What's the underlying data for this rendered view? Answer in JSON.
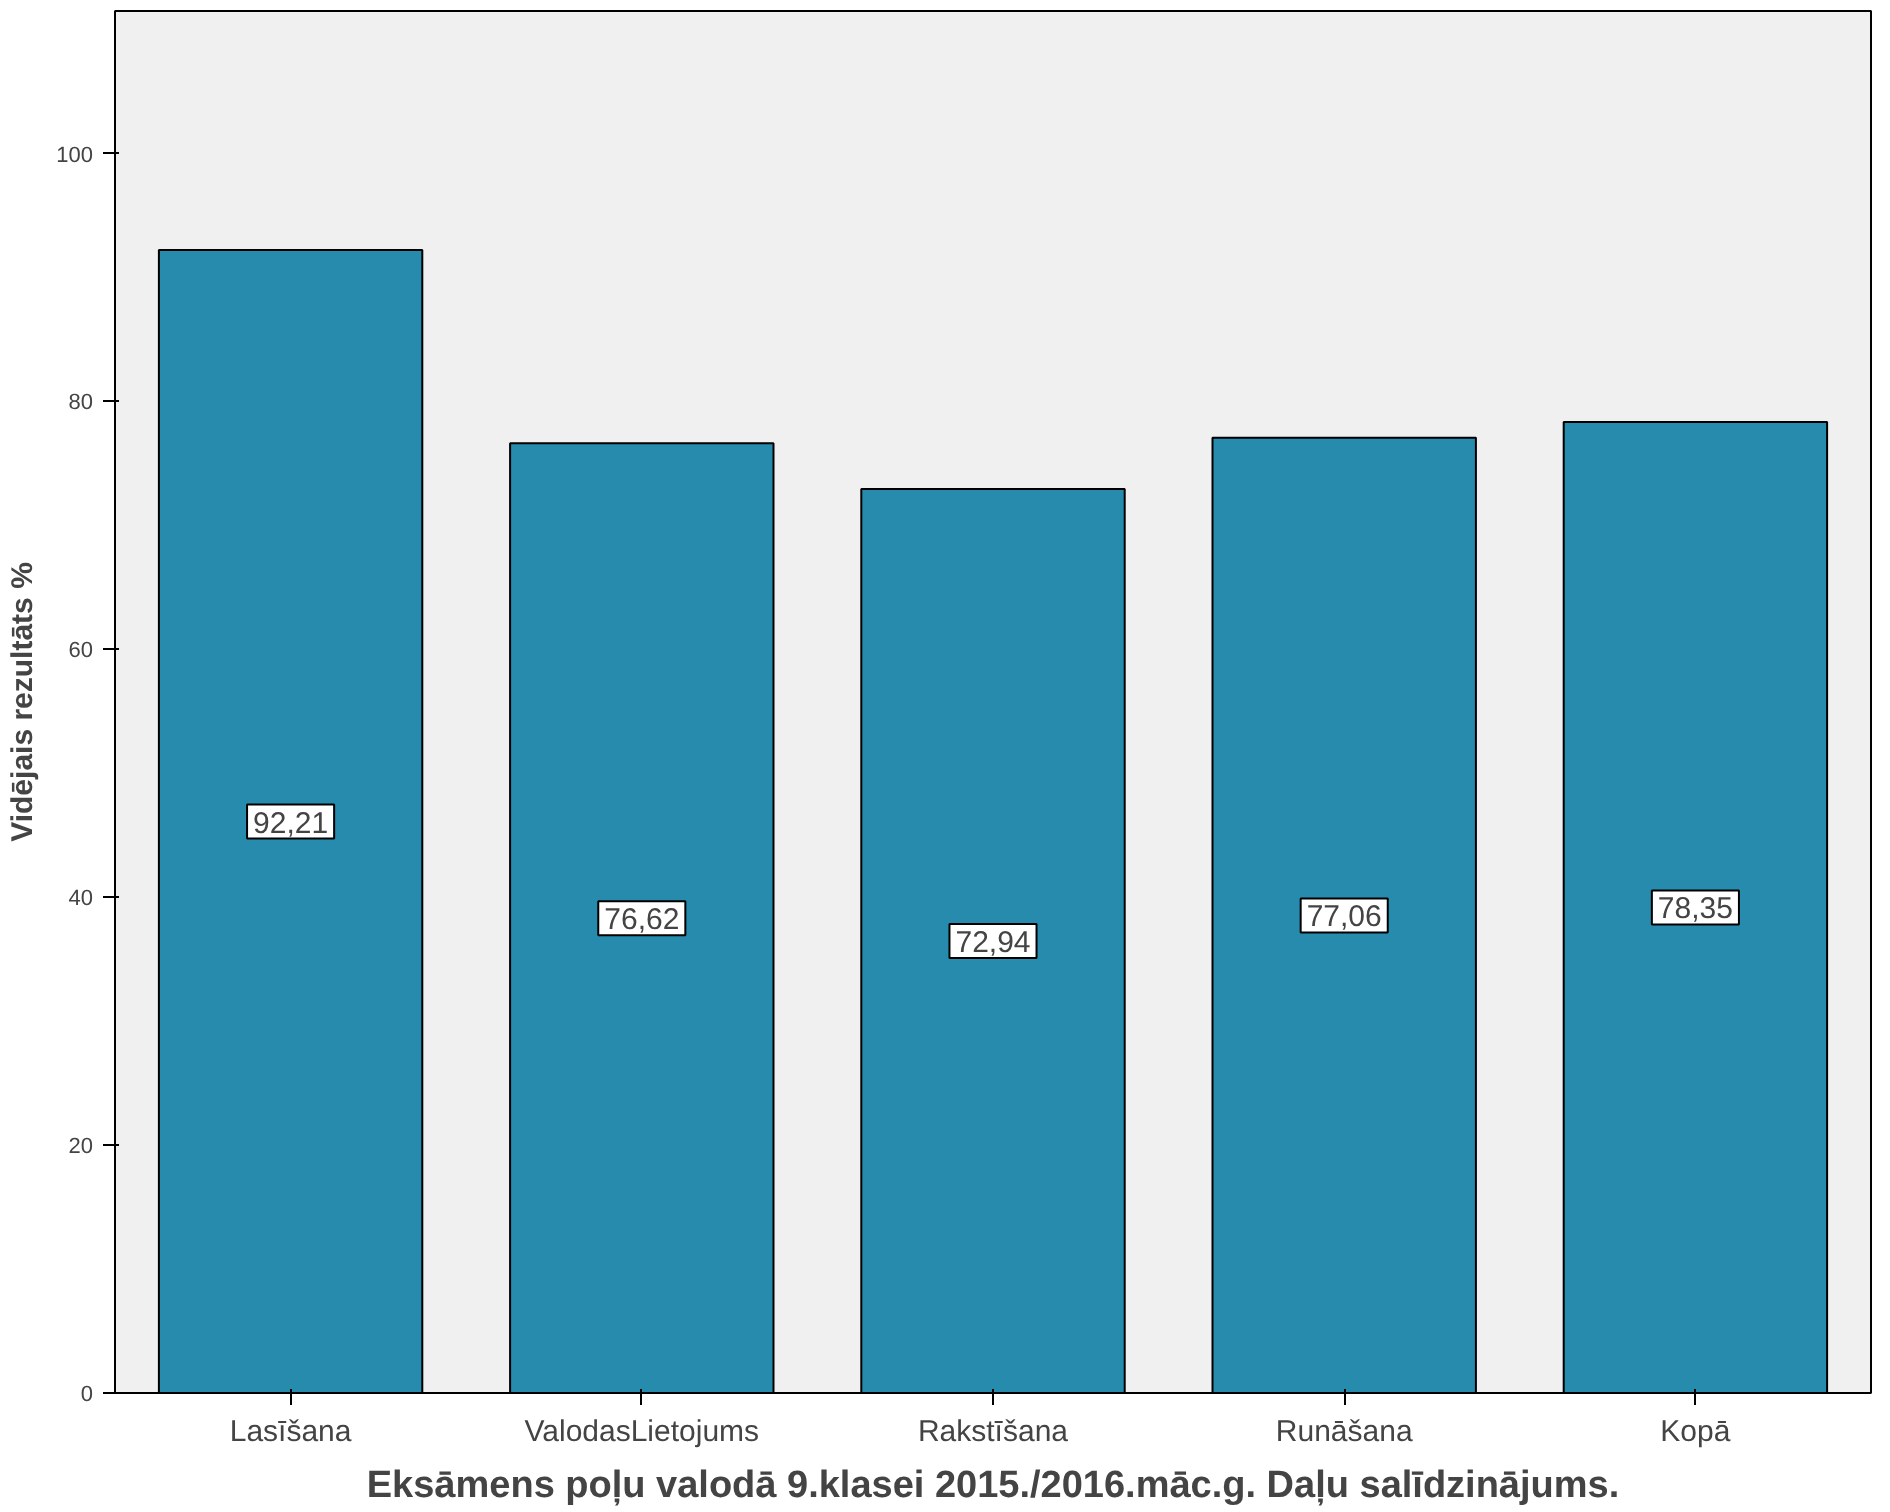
{
  "chart_data": {
    "type": "bar",
    "xlabel": "Eksāmens poļu valodā 9.klasei 2015./2016.māc.g. Daļu salīdzinājums.",
    "ylabel": "Vidējais rezultāts %",
    "categories": [
      "Lasīšana",
      "ValodasLietojums",
      "Rakstīšana",
      "Runāšana",
      "Kopā"
    ],
    "values": [
      92.21,
      76.62,
      72.94,
      77.06,
      78.35
    ],
    "value_labels": [
      "92,21",
      "76,62",
      "72,94",
      "77,06",
      "78,35"
    ],
    "color": "#268bad",
    "ylim": [
      0,
      111.5
    ],
    "yticks": [
      0,
      20,
      40,
      60,
      80,
      100
    ],
    "grid": false
  }
}
